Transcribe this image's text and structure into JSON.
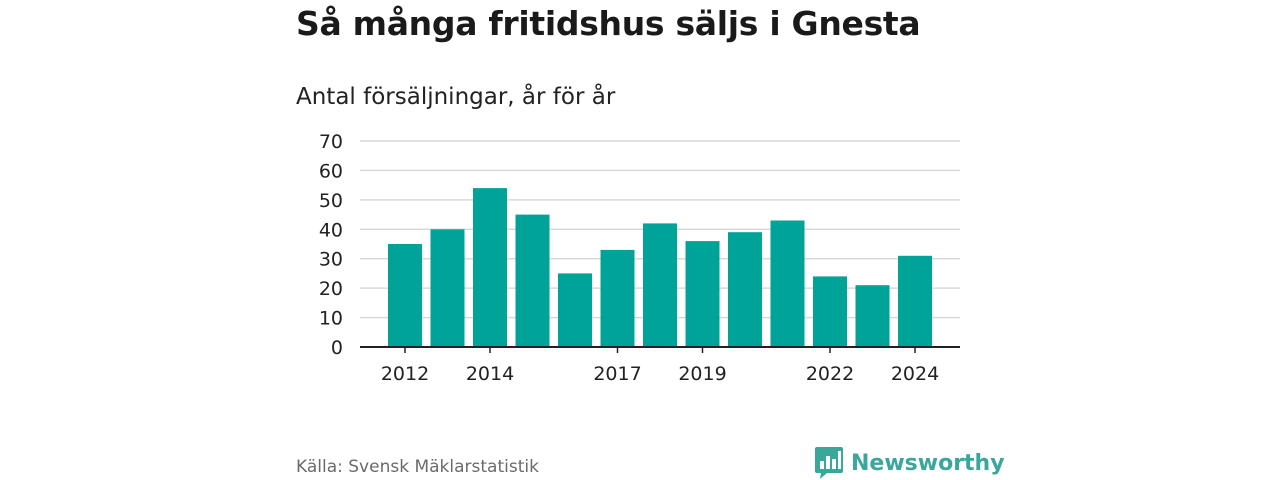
{
  "title": "Så många fritidshus säljs i Gnesta",
  "subtitle": "Antal försäljningar, år för år",
  "source": "Källa: Svensk Mäklarstatistik",
  "brand": {
    "name": "Newsworthy",
    "icon": "newsworthy-logo-icon"
  },
  "colors": {
    "bar": "#00a398",
    "grid": "#d9d9d9",
    "axis": "#222222",
    "brand": "#3aa79b"
  },
  "chart_data": {
    "type": "bar",
    "categories": [
      "2012",
      "2013",
      "2014",
      "2015",
      "2016",
      "2017",
      "2018",
      "2019",
      "2020",
      "2021",
      "2022",
      "2023",
      "2024"
    ],
    "values": [
      35,
      40,
      54,
      45,
      25,
      33,
      42,
      36,
      39,
      43,
      24,
      21,
      31
    ],
    "tick_labels_x": [
      "2012",
      "2014",
      "2017",
      "2019",
      "2022",
      "2024"
    ],
    "yticks": [
      0,
      10,
      20,
      30,
      40,
      50,
      60,
      70
    ],
    "ylim": [
      0,
      70
    ],
    "grid": true,
    "xlabel": "",
    "ylabel": ""
  }
}
